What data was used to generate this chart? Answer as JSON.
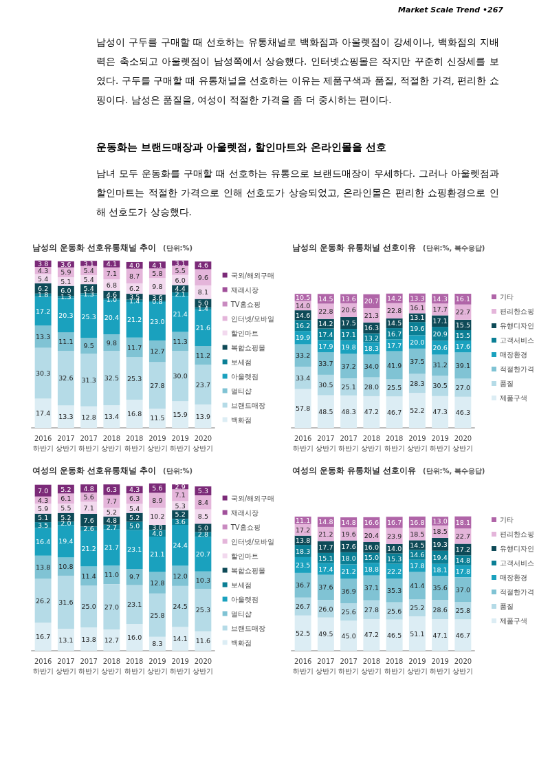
{
  "chart_data": [
    {
      "type": "bar",
      "title": "남성의 운동화 선호유통채널 추이",
      "subtitle": "(단위:%)",
      "annotations": [
        "Market Scale Trend •267",
        "남성이 구두를 구매할 때 선호하는 유통채널로 백화점과 아울렛점이 강세이나, 백화점의 지배력은 축소되고 아울렛점이 남성쪽에서 상승했다. 인터넷쇼핑몰은 작지만 꾸준히 신장세를 보였다. 구두를 구매할 때 유통채널을 선호하는 이유는 제품구색과 품질, 적절한 가격, 편리한 쇼핑이다. 남성은 품질을, 여성이 적절한 가격을 좀 더 중시하는 편이다.",
        "운동화는 브랜드매장과 아울렛점, 할인마트와 온라인몰을 선호",
        "남녀 모두 운동화를 구매할 때 선호하는 유통으로 브랜드매장이 우세하다. 그러나 아울렛점과 할인마트는 적절한 가격으로 인해 선호도가 상승되었고, 온라인몰은 편리한 쇼핑환경으로 인해 선호도가 상승했다."
      ],
      "categories": [
        "2016\n하반기",
        "2017\n상반기",
        "2017\n하반기",
        "2018\n상반기",
        "2018\n하반기",
        "2019\n상반기",
        "2019\n하반기",
        "2020\n상반기"
      ],
      "stacked": true,
      "data_labels": true,
      "legend": "right",
      "grid": false,
      "tick_labels": "x",
      "series": [
        {
          "name": "백화점",
          "color": "#dcedf4",
          "values": [
            17.4,
            13.3,
            12.8,
            13.4,
            16.8,
            11.5,
            15.9,
            13.9
          ]
        },
        {
          "name": "브랜드매장",
          "color": "#b5dbe7",
          "values": [
            30.3,
            32.6,
            31.3,
            32.5,
            25.3,
            27.8,
            30.0,
            23.7
          ],
          "value_labels": [
            "30.3",
            "32.6",
            "31.3",
            "32.5",
            "25.3",
            "27.8",
            "30.0",
            "23.7"
          ]
        },
        {
          "name": "멀티샵",
          "color": "#80c3d4",
          "values": [
            13.3,
            11.1,
            9.5,
            9.8,
            11.7,
            12.7,
            11.3,
            11.2
          ]
        },
        {
          "name": "아울렛점",
          "color": "#1aa1be",
          "values": [
            17.2,
            20.3,
            25.3,
            20.4,
            21.2,
            23.0,
            21.4,
            21.6
          ],
          "value_labels": [
            "17.2",
            "20.3",
            "25.3",
            "20.4",
            "21.2",
            "23.0",
            "21.4",
            "21.6"
          ]
        },
        {
          "name": "보세점",
          "color": "#0b7f95",
          "values": [
            1.8,
            1.3,
            1.3,
            1.0,
            1.4,
            0.8,
            2.1,
            1.4
          ],
          "value_labels": [
            "1.8",
            "1.3",
            "1.3",
            "1.0",
            "1.4",
            "0.8",
            "2.1",
            "1.4"
          ]
        },
        {
          "name": "복합쇼핑몰",
          "color": "#0e4a57",
          "values": [
            6.2,
            6.0,
            5.4,
            4.6,
            3.5,
            3.6,
            4.4,
            5.0
          ],
          "value_labels": [
            "6.2",
            "6.0",
            "5.4",
            "4.6",
            "3.5",
            "3.6",
            "4.4",
            "5.0"
          ]
        },
        {
          "name": "할인마트",
          "color": "#f2d9ee",
          "values": [
            5.4,
            5.1,
            5.4,
            6.8,
            6.2,
            9.8,
            6.0,
            8.1
          ],
          "value_labels": [
            "5.4",
            "5.1",
            "5.4",
            "6.8",
            "6.2",
            "9.8",
            "6.0",
            "8.1"
          ]
        },
        {
          "name": "인터넷/모바일",
          "color": "#e4b5da",
          "values": [
            4.3,
            5.9,
            5.4,
            7.1,
            8.7,
            5.8,
            5.5,
            9.6
          ]
        },
        {
          "name": "TV홈쇼핑",
          "color": "#c98ac0",
          "values": [
            null,
            null,
            null,
            null,
            null,
            null,
            null,
            null
          ]
        },
        {
          "name": "재래시장",
          "color": "#a0509a",
          "values": [
            null,
            null,
            null,
            null,
            null,
            null,
            null,
            null
          ]
        },
        {
          "name": "국외/해외구매",
          "color": "#7b2a78",
          "values": [
            3.8,
            3.6,
            3.1,
            4.1,
            4.0,
            4.1,
            3.1,
            4.6
          ],
          "value_labels": [
            "3.8",
            "3.6",
            "3.1",
            "4.1",
            "4.0",
            "4.1",
            "3.1",
            "4.6"
          ]
        }
      ]
    },
    {
      "type": "bar",
      "title": "남성의 운동화 유통채널 선호이유",
      "subtitle": "(단위:%, 복수응답)",
      "categories": [
        "2016\n하반기",
        "2017\n상반기",
        "2017\n하반기",
        "2018\n상반기",
        "2018\n하반기",
        "2019\n상반기",
        "2019\n하반기",
        "2020\n상반기"
      ],
      "stacked": true,
      "data_labels": true,
      "legend": "right",
      "grid": false,
      "tick_labels": "x",
      "series": [
        {
          "name": "제품구색",
          "color": "#dcedf4",
          "values": [
            57.8,
            48.5,
            48.3,
            47.2,
            46.7,
            52.2,
            47.3,
            46.3
          ]
        },
        {
          "name": "품질",
          "color": "#b5dbe7",
          "values": [
            33.4,
            30.5,
            25.1,
            28.0,
            25.5,
            28.3,
            30.5,
            27.0
          ],
          "value_labels": [
            "33.4",
            "30.5",
            "25.1",
            "28.0",
            "25.5",
            "28.3",
            "30.5",
            "27.0"
          ]
        },
        {
          "name": "적절한가격",
          "color": "#80c3d4",
          "values": [
            33.2,
            33.7,
            37.2,
            34.0,
            41.9,
            37.5,
            31.2,
            39.1
          ],
          "value_labels": [
            "33.2",
            "33.7",
            "37.2",
            "34.0",
            "41.9",
            "37.5",
            "31.2",
            "39.1"
          ]
        },
        {
          "name": "매장환경",
          "color": "#1aa1be",
          "values": [
            19.9,
            17.9,
            19.8,
            18.3,
            17.7,
            20.0,
            20.6,
            17.6
          ],
          "value_labels": [
            "19.9",
            "17.9",
            "19.8",
            "18.3",
            "17.7",
            "20.0",
            "20.6",
            "17.6"
          ]
        },
        {
          "name": "고객서비스",
          "color": "#0b7f95",
          "values": [
            16.2,
            17.4,
            17.1,
            13.2,
            16.7,
            19.6,
            20.9,
            15.5
          ]
        },
        {
          "name": "유행디자인",
          "color": "#0e4a57",
          "values": [
            14.6,
            14.2,
            17.5,
            16.3,
            14.5,
            13.1,
            17.1,
            15.5
          ]
        },
        {
          "name": "편리한쇼핑",
          "color": "#e4b5da",
          "values": [
            14.0,
            22.8,
            20.6,
            21.3,
            22.8,
            16.1,
            17.7,
            22.7
          ],
          "value_labels": [
            "14.0",
            "22.8",
            "20.6",
            "21.3",
            "22.8",
            "16.1",
            "17.7",
            "22.7"
          ]
        },
        {
          "name": "기타",
          "color": "#b065a8",
          "values": [
            10.5,
            14.5,
            13.6,
            20.7,
            14.2,
            13.3,
            14.3,
            16.1
          ]
        }
      ]
    },
    {
      "type": "bar",
      "title": "여성의 운동화 선호유통채널 추이",
      "subtitle": "(단위:%)",
      "categories": [
        "2016\n하반기",
        "2017\n상반기",
        "2017\n하반기",
        "2018\n상반기",
        "2018\n하반기",
        "2019\n상반기",
        "2019\n하반기",
        "2020\n상반기"
      ],
      "stacked": true,
      "data_labels": true,
      "legend": "right",
      "grid": false,
      "tick_labels": "x",
      "series": [
        {
          "name": "백화점",
          "color": "#dcedf4",
          "values": [
            16.7,
            13.1,
            13.8,
            12.7,
            16.0,
            8.3,
            14.1,
            11.6
          ],
          "value_labels": [
            "16.7",
            "13.1",
            "13.8",
            "12.7",
            "16.0",
            "8.3",
            "14.1",
            "11.6"
          ]
        },
        {
          "name": "브랜드매장",
          "color": "#b5dbe7",
          "values": [
            26.2,
            31.6,
            25.0,
            27.0,
            23.1,
            25.8,
            24.5,
            25.3
          ],
          "value_labels": [
            "26.2",
            "31.6",
            "25.0",
            "27.0",
            "23.1",
            "25.8",
            "24.5",
            "25.3"
          ]
        },
        {
          "name": "멀티샵",
          "color": "#80c3d4",
          "values": [
            13.8,
            10.8,
            11.4,
            11.0,
            9.7,
            12.8,
            12.0,
            10.3
          ],
          "value_labels": [
            "13.8",
            "10.8",
            "11.4",
            "11.0",
            "9.7",
            "12.8",
            "12.0",
            "10.3"
          ]
        },
        {
          "name": "아울렛점",
          "color": "#1aa1be",
          "values": [
            16.4,
            19.4,
            21.2,
            21.7,
            23.1,
            21.1,
            24.4,
            20.7
          ]
        },
        {
          "name": "보세점",
          "color": "#0b7f95",
          "values": [
            3.5,
            2.0,
            2.6,
            2.7,
            5.0,
            4.0,
            3.6,
            2.8
          ],
          "value_labels": [
            "3.5",
            "2.0",
            "2.6",
            "2.7",
            "5.0",
            "4.0",
            "3.6",
            "2.8"
          ]
        },
        {
          "name": "복합쇼핑몰",
          "color": "#0e4a57",
          "values": [
            5.1,
            5.2,
            7.6,
            4.8,
            5.2,
            3.0,
            5.2,
            5.0
          ],
          "value_labels": [
            "5.1",
            "5.2",
            "7.6",
            "4.8",
            "5.2",
            "3.0",
            "5.2",
            "5.0"
          ]
        },
        {
          "name": "할인마트",
          "color": "#f2d9ee",
          "values": [
            5.9,
            5.5,
            7.1,
            5.2,
            5.4,
            10.2,
            5.3,
            8.5
          ]
        },
        {
          "name": "인터넷/모바일",
          "color": "#e4b5da",
          "values": [
            4.3,
            6.1,
            5.6,
            7.7,
            6.3,
            8.9,
            7.1,
            8.4
          ]
        },
        {
          "name": "TV홈쇼핑",
          "color": "#c98ac0",
          "values": [
            null,
            null,
            null,
            null,
            null,
            null,
            null,
            null
          ]
        },
        {
          "name": "재래시장",
          "color": "#a0509a",
          "values": [
            null,
            null,
            null,
            null,
            null,
            null,
            null,
            null
          ]
        },
        {
          "name": "국외/해외구매",
          "color": "#7b2a78",
          "values": [
            7.0,
            5.2,
            4.8,
            6.3,
            4.3,
            5.6,
            2.9,
            5.3
          ],
          "value_labels": [
            "7.0",
            "5.2",
            "4.8",
            "6.3",
            "4.3",
            "5.6",
            "2.9",
            "5.3"
          ]
        }
      ]
    },
    {
      "type": "bar",
      "title": "여성의 운동화 유통채널 선호이유",
      "subtitle": "(단위:%, 복수응답)",
      "categories": [
        "2016\n하반기",
        "2017\n상반기",
        "2017\n하반기",
        "2018\n상반기",
        "2018\n하반기",
        "2019\n상반기",
        "2019\n하반기",
        "2020\n상반기"
      ],
      "stacked": true,
      "data_labels": true,
      "legend": "right",
      "grid": false,
      "tick_labels": "x",
      "series": [
        {
          "name": "제품구색",
          "color": "#dcedf4",
          "values": [
            52.5,
            49.5,
            45.0,
            47.2,
            46.5,
            51.1,
            47.1,
            46.7
          ],
          "value_labels": [
            "52.5",
            "49.5",
            "45.0",
            "47.2",
            "46.5",
            "51.1",
            "47.1",
            "46.7"
          ]
        },
        {
          "name": "품질",
          "color": "#b5dbe7",
          "values": [
            26.7,
            26.0,
            25.6,
            27.8,
            25.6,
            25.2,
            28.6,
            25.8
          ],
          "value_labels": [
            "26.7",
            "26.0",
            "25.6",
            "27.8",
            "25.6",
            "25.2",
            "28.6",
            "25.8"
          ]
        },
        {
          "name": "적절한가격",
          "color": "#80c3d4",
          "values": [
            36.7,
            37.6,
            36.9,
            37.1,
            35.3,
            41.4,
            35.6,
            37.0
          ],
          "value_labels": [
            "36.7",
            "37.6",
            "36.9",
            "37.1",
            "35.3",
            "41.4",
            "35.6",
            "37.0"
          ]
        },
        {
          "name": "매장환경",
          "color": "#1aa1be",
          "values": [
            23.5,
            17.4,
            21.2,
            18.8,
            22.2,
            17.8,
            18.1,
            17.8
          ]
        },
        {
          "name": "고객서비스",
          "color": "#0b7f95",
          "values": [
            18.3,
            15.1,
            18.0,
            15.0,
            15.3,
            14.6,
            19.4,
            14.8
          ],
          "value_labels": [
            "18.3",
            "15.1",
            "18.0",
            "15.0",
            "15.3",
            "14.6",
            "19.4",
            "14.8"
          ]
        },
        {
          "name": "유행디자인",
          "color": "#0e4a57",
          "values": [
            13.8,
            17.7,
            17.6,
            16.0,
            14.0,
            14.5,
            19.3,
            17.2
          ],
          "value_labels": [
            "13.8",
            "17.7",
            "17.6",
            "16.0",
            "14.0",
            "14.5",
            "19.3",
            "17.2"
          ]
        },
        {
          "name": "편리한쇼핑",
          "color": "#e4b5da",
          "values": [
            17.2,
            21.2,
            19.6,
            20.4,
            23.9,
            18.5,
            18.5,
            22.7
          ]
        },
        {
          "name": "기타",
          "color": "#b065a8",
          "values": [
            11.1,
            14.8,
            14.8,
            16.6,
            16.7,
            16.8,
            13.0,
            18.1
          ],
          "value_labels": [
            "11.1",
            "14.8",
            "14.8",
            "16.6",
            "16.7",
            "16.8",
            "13.0",
            "18.1"
          ]
        }
      ]
    }
  ]
}
